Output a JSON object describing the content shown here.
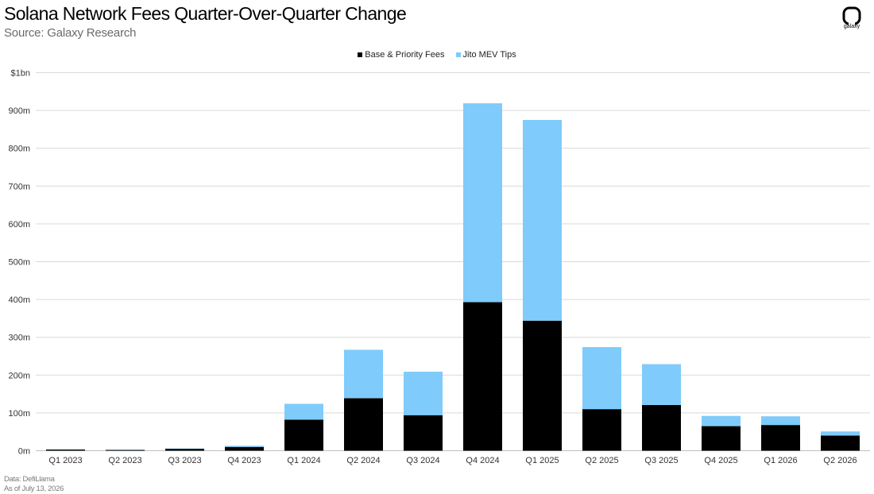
{
  "header": {
    "title": "Solana Network Fees Quarter-Over-Quarter Change",
    "subtitle": "Source: Galaxy Research",
    "logo_text": "galaxy",
    "logo_icon": "galaxy-logo-icon"
  },
  "footer": {
    "data_note": "Data: DefiLlama",
    "as_of": "As of July 13, 2026"
  },
  "colors": {
    "base": "#000000",
    "jito": "#7fcbfb",
    "grid": "#d9d9d9",
    "axis_text": "#333333"
  },
  "chart_data": {
    "type": "bar",
    "stacked": true,
    "title": "Solana Network Fees Quarter-Over-Quarter Change",
    "subtitle": "Source: Galaxy Research",
    "legend_position": "top-center",
    "grid": true,
    "categories": [
      "Q1 2023",
      "Q2 2023",
      "Q3 2023",
      "Q4 2023",
      "Q1 2024",
      "Q2 2024",
      "Q3 2024",
      "Q4 2024",
      "Q1 2025",
      "Q2 2025",
      "Q3 2025",
      "Q4 2025",
      "Q1 2026",
      "Q2 2026"
    ],
    "series": [
      {
        "name": "Base & Priority Fees",
        "values": [
          3,
          2,
          5,
          10,
          82,
          139,
          94,
          393,
          344,
          110,
          121,
          65,
          68,
          40
        ]
      },
      {
        "name": "Jito MEV Tips",
        "values": [
          1,
          1,
          1,
          3,
          42,
          128,
          115,
          526,
          531,
          164,
          108,
          27,
          23,
          11
        ]
      }
    ],
    "ylim": [
      0,
      1000
    ],
    "yticks": [
      0,
      100,
      200,
      300,
      400,
      500,
      600,
      700,
      800,
      900,
      1000
    ],
    "ytick_labels": [
      "0m",
      "100m",
      "200m",
      "300m",
      "400m",
      "500m",
      "600m",
      "700m",
      "800m",
      "900m",
      "$1bn"
    ]
  }
}
